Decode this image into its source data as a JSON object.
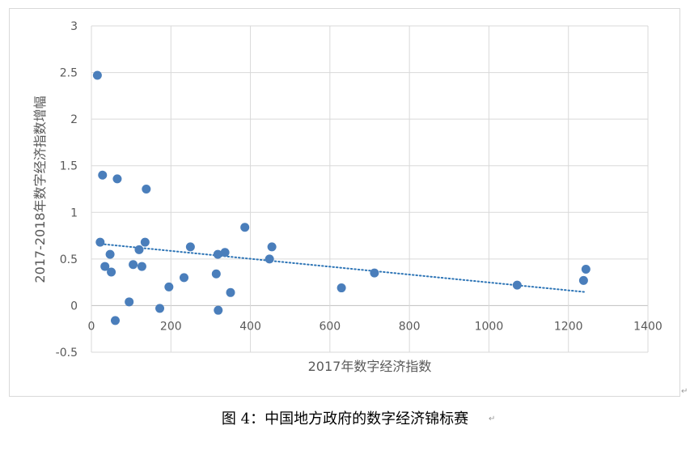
{
  "caption": "图 4：中国地方政府的数字经济锦标赛",
  "chart_data": {
    "type": "scatter",
    "title": "",
    "xlabel": "2017年数字经济指数",
    "ylabel": "2017-2018年数字经济指数增幅",
    "xlim": [
      0,
      1400
    ],
    "ylim": [
      -0.5,
      3
    ],
    "xticks": [
      0,
      200,
      400,
      600,
      800,
      1000,
      1200,
      1400
    ],
    "yticks": [
      -0.5,
      0,
      0.5,
      1,
      1.5,
      2,
      2.5,
      3
    ],
    "xtick_labels": [
      "0",
      "200",
      "400",
      "600",
      "800",
      "1000",
      "1200",
      "1400"
    ],
    "ytick_labels": [
      "-0.5",
      "0",
      "0.5",
      "1",
      "1.5",
      "2",
      "2.5",
      "3"
    ],
    "grid": true,
    "legend": "none",
    "point_color": "#4a7ebb",
    "trendline_color": "#2e75b6",
    "series": [
      {
        "x": [
          15,
          22,
          28,
          34,
          47,
          50,
          60,
          65,
          95,
          105,
          120,
          127,
          135,
          138,
          172,
          195,
          233,
          249,
          314,
          318,
          319,
          336,
          350,
          386,
          448,
          454,
          629,
          712,
          1071,
          1238,
          1244
        ],
        "y": [
          2.47,
          0.68,
          1.4,
          0.42,
          0.55,
          0.36,
          -0.16,
          1.36,
          0.04,
          0.44,
          0.6,
          0.42,
          0.68,
          1.25,
          -0.03,
          0.2,
          0.3,
          0.63,
          0.34,
          0.55,
          -0.05,
          0.57,
          0.14,
          0.84,
          0.5,
          0.63,
          0.19,
          0.35,
          0.22,
          0.27,
          0.39
        ]
      }
    ],
    "trendline": {
      "type": "linear",
      "x": [
        15,
        1244
      ],
      "y": [
        0.665,
        0.145
      ]
    }
  }
}
